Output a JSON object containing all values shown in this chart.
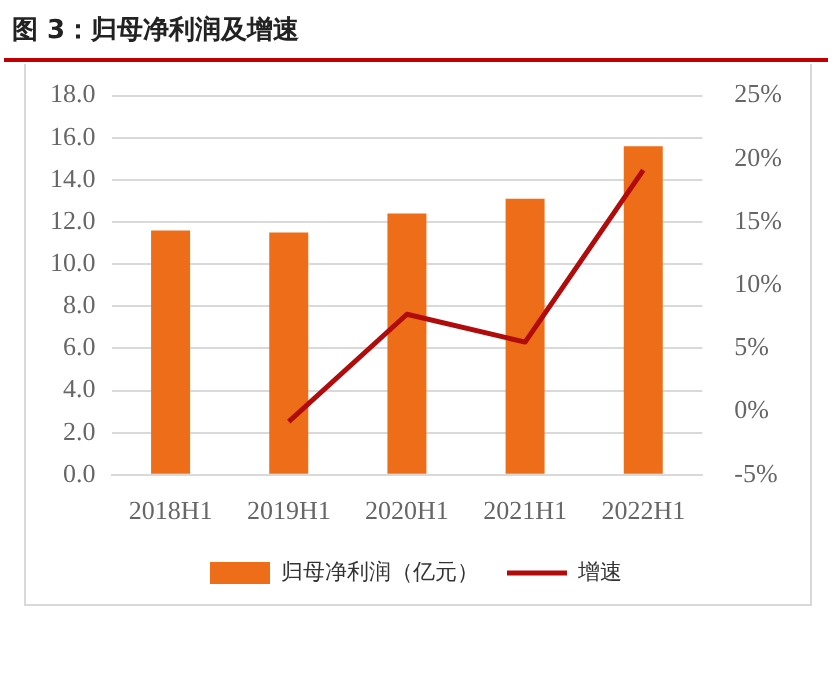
{
  "chart_data": {
    "type": "bar",
    "title": "图 3：归母净利润及增速",
    "categories": [
      "2018H1",
      "2019H1",
      "2020H1",
      "2021H1",
      "2022H1"
    ],
    "series": [
      {
        "name": "归母净利润（亿元）",
        "color": "#ed6d18",
        "values": [
          11.6,
          11.5,
          12.4,
          13.1,
          15.6
        ]
      },
      {
        "name": "增速",
        "type": "line",
        "axis": "y2",
        "color": "#b00c0c",
        "values": [
          null,
          -0.8,
          7.7,
          5.5,
          19.1
        ]
      }
    ],
    "ylim": [
      0,
      18
    ],
    "yticks": [
      {
        "value": 0,
        "label": "0.0"
      },
      {
        "value": 2,
        "label": "2.0"
      },
      {
        "value": 4,
        "label": "4.0"
      },
      {
        "value": 6,
        "label": "6.0"
      },
      {
        "value": 8,
        "label": "8.0"
      },
      {
        "value": 10,
        "label": "10.0"
      },
      {
        "value": 12,
        "label": "12.0"
      },
      {
        "value": 14,
        "label": "14.0"
      },
      {
        "value": 16,
        "label": "16.0"
      },
      {
        "value": 18,
        "label": "18.0"
      }
    ],
    "y2lim": [
      -5,
      25
    ],
    "y2ticks": [
      {
        "value": -5,
        "label": "-5%"
      },
      {
        "value": 0,
        "label": "0%"
      },
      {
        "value": 5,
        "label": "5%"
      },
      {
        "value": 10,
        "label": "10%"
      },
      {
        "value": 15,
        "label": "15%"
      },
      {
        "value": 20,
        "label": "20%"
      },
      {
        "value": 25,
        "label": "25%"
      }
    ],
    "grid": "y",
    "legend": "bottom",
    "marker": "none",
    "line_style": "solid"
  }
}
